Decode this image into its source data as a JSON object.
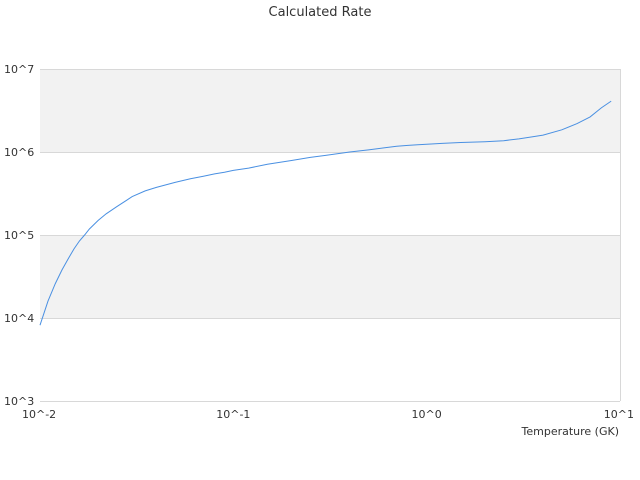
{
  "chart_data": {
    "type": "line",
    "title": "Calculated Rate",
    "xlabel": "Temperature (GK)",
    "ylabel": "",
    "xscale": "log",
    "yscale": "log",
    "xlim": [
      0.01,
      10
    ],
    "ylim": [
      1000,
      10000000
    ],
    "x_tick_values": [
      0.01,
      0.1,
      1,
      10
    ],
    "x_ticks": [
      "10^-2",
      "10^-1",
      "10^0",
      "10^1"
    ],
    "y_tick_values": [
      1000,
      10000,
      100000,
      1000000,
      10000000
    ],
    "y_ticks": [
      "10^3",
      "10^4",
      "10^5",
      "10^6",
      "10^7"
    ],
    "alternate_bands": true,
    "band_color": "#f2f2f2",
    "grid_color": "#d8d8d8",
    "line_color": "#4a90e2",
    "series": [
      {
        "x": [
          0.01,
          0.011,
          0.012,
          0.013,
          0.014,
          0.015,
          0.016,
          0.017,
          0.018,
          0.02,
          0.022,
          0.025,
          0.03,
          0.035,
          0.04,
          0.05,
          0.06,
          0.07,
          0.08,
          0.09,
          0.1,
          0.12,
          0.15,
          0.2,
          0.25,
          0.3,
          0.4,
          0.5,
          0.6,
          0.7,
          0.8,
          0.9,
          1,
          1.2,
          1.5,
          2,
          2.5,
          3,
          3.5,
          4,
          5,
          6,
          7,
          8,
          9
        ],
        "y": [
          8200,
          16000,
          26000,
          38000,
          52000,
          68000,
          85000,
          100000,
          118000,
          150000,
          180000,
          220000,
          290000,
          340000,
          375000,
          430000,
          475000,
          510000,
          545000,
          570000,
          600000,
          640000,
          710000,
          790000,
          860000,
          910000,
          1000000,
          1060000,
          1120000,
          1170000,
          1200000,
          1220000,
          1240000,
          1270000,
          1300000,
          1330000,
          1370000,
          1440000,
          1520000,
          1600000,
          1850000,
          2200000,
          2650000,
          3400000,
          4100000
        ]
      }
    ]
  }
}
